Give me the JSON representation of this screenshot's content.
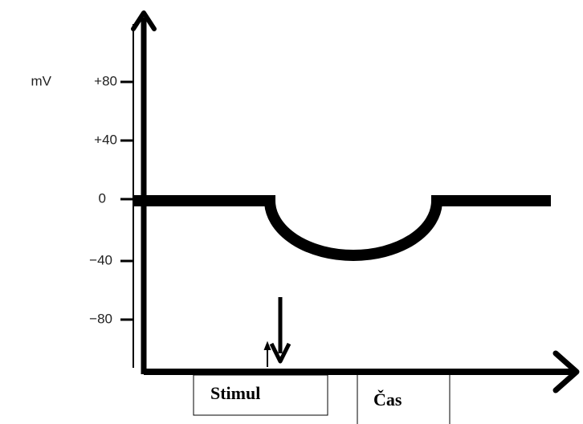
{
  "axis": {
    "unit": "mV",
    "ticks": [
      "+80",
      "+40",
      "0",
      "−40",
      "−80"
    ]
  },
  "labels": {
    "stimulus": "Stimul",
    "time": "Čas"
  }
}
